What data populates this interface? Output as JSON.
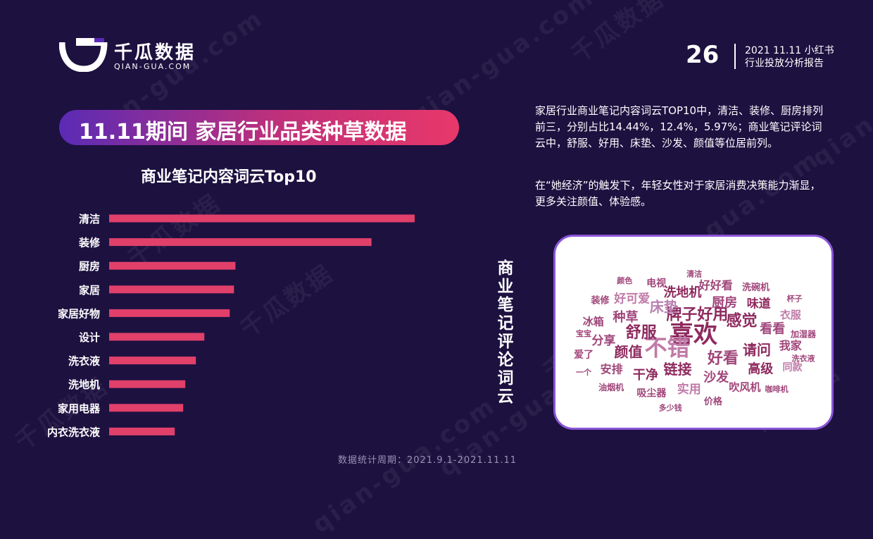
{
  "brand": {
    "name": "千瓜数据",
    "domain": "QIAN-GUA.COM",
    "watermark": "千瓜数据",
    "watermark_domain": "qian-gua.com"
  },
  "header": {
    "page_number": "26",
    "report_line1": "2021 11.11 小红书",
    "report_line2": "行业投放分析报告"
  },
  "title": "11.11期间 家居行业品类种草数据",
  "chart_title": "商业笔记内容词云Top10",
  "chart_data": {
    "type": "bar",
    "orientation": "horizontal",
    "categories": [
      "清洁",
      "装修",
      "厨房",
      "家居",
      "家居好物",
      "设计",
      "洗衣液",
      "洗地机",
      "家用电器",
      "内衣洗衣液"
    ],
    "values": [
      14.44,
      12.4,
      5.97,
      5.9,
      5.7,
      4.5,
      4.1,
      3.6,
      3.5,
      3.1
    ],
    "color": "#e0406a",
    "xlabel": "",
    "ylabel": ""
  },
  "cloud_title": "商业笔记评论词云",
  "description": {
    "paragraph1": "家居行业商业笔记内容词云TOP10中，清洁、装修、厨房排列前三，分别占比14.44%，12.4%，5.97%；商业笔记评论词云中，舒服、好用、床垫、沙发、颜值等位居前列。",
    "paragraph2": "在“她经济”的触发下，年轻女性对于家居消费决策能力渐显，更多关注颜值、体验感。"
  },
  "word_cloud": [
    {
      "text": "喜欢",
      "size": 34,
      "color": "#8e2a5e"
    },
    {
      "text": "不错",
      "size": 32,
      "color": "#c07aa8"
    },
    {
      "text": "牌子好用",
      "size": 22,
      "color": "#8e2a5e"
    },
    {
      "text": "好看",
      "size": 22,
      "color": "#a0457a"
    },
    {
      "text": "舒服",
      "size": 22,
      "color": "#8e2a5e"
    },
    {
      "text": "感觉",
      "size": 22,
      "color": "#8e2a5e"
    },
    {
      "text": "链接",
      "size": 20,
      "color": "#8e2a5e"
    },
    {
      "text": "床垫",
      "size": 20,
      "color": "#b880b0"
    },
    {
      "text": "请问",
      "size": 20,
      "color": "#8e2a5e"
    },
    {
      "text": "颜值",
      "size": 20,
      "color": "#8e2a5e"
    },
    {
      "text": "厨房",
      "size": 18,
      "color": "#a0457a"
    },
    {
      "text": "沙发",
      "size": 18,
      "color": "#a0457a"
    },
    {
      "text": "种草",
      "size": 18,
      "color": "#a0457a"
    },
    {
      "text": "看看",
      "size": 18,
      "color": "#a0457a"
    },
    {
      "text": "干净",
      "size": 18,
      "color": "#8e2a5e"
    },
    {
      "text": "洗地机",
      "size": 18,
      "color": "#8e2a5e"
    },
    {
      "text": "高级",
      "size": 18,
      "color": "#8e2a5e"
    },
    {
      "text": "分享",
      "size": 17,
      "color": "#a0457a"
    },
    {
      "text": "味道",
      "size": 17,
      "color": "#8e2a5e"
    },
    {
      "text": "实用",
      "size": 17,
      "color": "#c07aa8"
    },
    {
      "text": "好可爱",
      "size": 17,
      "color": "#c07aa8"
    },
    {
      "text": "我家",
      "size": 16,
      "color": "#a0457a"
    },
    {
      "text": "安排",
      "size": 16,
      "color": "#a0457a"
    },
    {
      "text": "好好看",
      "size": 16,
      "color": "#a0457a"
    },
    {
      "text": "吹风机",
      "size": 15,
      "color": "#a0457a"
    },
    {
      "text": "冰箱",
      "size": 15,
      "color": "#a0457a"
    },
    {
      "text": "衣服",
      "size": 15,
      "color": "#c07aa8"
    },
    {
      "text": "吸尘器",
      "size": 14,
      "color": "#a0457a"
    },
    {
      "text": "电视",
      "size": 14,
      "color": "#a0457a"
    },
    {
      "text": "同款",
      "size": 14,
      "color": "#c07aa8"
    },
    {
      "text": "爱了",
      "size": 14,
      "color": "#a0457a"
    },
    {
      "text": "洗碗机",
      "size": 13,
      "color": "#a0457a"
    },
    {
      "text": "价格",
      "size": 13,
      "color": "#a0457a"
    },
    {
      "text": "装修",
      "size": 13,
      "color": "#a0457a"
    },
    {
      "text": "加湿器",
      "size": 12,
      "color": "#a0457a"
    },
    {
      "text": "油烟机",
      "size": 12,
      "color": "#a0457a"
    },
    {
      "text": "清洁",
      "size": 11,
      "color": "#a0457a"
    },
    {
      "text": "咖啡机",
      "size": 11,
      "color": "#a0457a"
    },
    {
      "text": "宝宝",
      "size": 11,
      "color": "#a0457a"
    },
    {
      "text": "杯子",
      "size": 11,
      "color": "#a0457a"
    },
    {
      "text": "多少钱",
      "size": 11,
      "color": "#a0457a"
    },
    {
      "text": "颜色",
      "size": 11,
      "color": "#a0457a"
    },
    {
      "text": "洗衣液",
      "size": 11,
      "color": "#a0457a"
    },
    {
      "text": "一个",
      "size": 11,
      "color": "#a0457a"
    }
  ],
  "footer": "数据统计周期：2021.9.1-2021.11.11"
}
